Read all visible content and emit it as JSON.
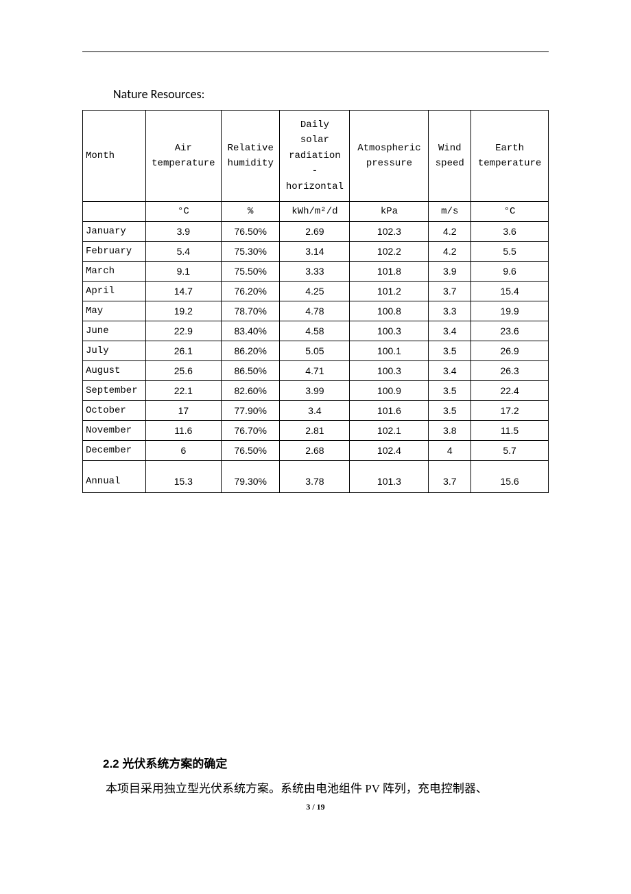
{
  "title": "Nature Resources:",
  "table": {
    "columns": [
      {
        "header": "Month",
        "unit": "",
        "width_class": "col-month"
      },
      {
        "header": "Air\ntemperature",
        "unit": "°C",
        "width_class": "col-air"
      },
      {
        "header": "Relative\nhumidity",
        "unit": "%",
        "width_class": "col-humidity"
      },
      {
        "header": "Daily\nsolar\nradiation\n-\nhorizontal",
        "unit": "kWh/m²/d",
        "width_class": "col-solar"
      },
      {
        "header": "Atmospheric\npressure",
        "unit": "kPa",
        "width_class": "col-pressure"
      },
      {
        "header": "Wind\nspeed",
        "unit": "m/s",
        "width_class": "col-wind"
      },
      {
        "header": "Earth\ntemperature",
        "unit": "°C",
        "width_class": "col-earth"
      }
    ],
    "rows": [
      {
        "month": "January",
        "values": [
          "3.9",
          "76.50%",
          "2.69",
          "102.3",
          "4.2",
          "3.6"
        ]
      },
      {
        "month": "February",
        "values": [
          "5.4",
          "75.30%",
          "3.14",
          "102.2",
          "4.2",
          "5.5"
        ]
      },
      {
        "month": "March",
        "values": [
          "9.1",
          "75.50%",
          "3.33",
          "101.8",
          "3.9",
          "9.6"
        ]
      },
      {
        "month": "April",
        "values": [
          "14.7",
          "76.20%",
          "4.25",
          "101.2",
          "3.7",
          "15.4"
        ]
      },
      {
        "month": "May",
        "values": [
          "19.2",
          "78.70%",
          "4.78",
          "100.8",
          "3.3",
          "19.9"
        ]
      },
      {
        "month": "June",
        "values": [
          "22.9",
          "83.40%",
          "4.58",
          "100.3",
          "3.4",
          "23.6"
        ]
      },
      {
        "month": "July",
        "values": [
          "26.1",
          "86.20%",
          "5.05",
          "100.1",
          "3.5",
          "26.9"
        ]
      },
      {
        "month": "August",
        "values": [
          "25.6",
          "86.50%",
          "4.71",
          "100.3",
          "3.4",
          "26.3"
        ]
      },
      {
        "month": "September",
        "values": [
          "22.1",
          "82.60%",
          "3.99",
          "100.9",
          "3.5",
          "22.4"
        ]
      },
      {
        "month": "October",
        "values": [
          "17",
          "77.90%",
          "3.4",
          "101.6",
          "3.5",
          "17.2"
        ]
      },
      {
        "month": "November",
        "values": [
          "11.6",
          "76.70%",
          "2.81",
          "102.1",
          "3.8",
          "11.5"
        ]
      },
      {
        "month": "December",
        "values": [
          "6",
          "76.50%",
          "2.68",
          "102.4",
          "4",
          "5.7"
        ]
      }
    ],
    "annual": {
      "month": "Annual",
      "values": [
        "15.3",
        "79.30%",
        "3.78",
        "101.3",
        "3.7",
        "15.6"
      ]
    },
    "border_color": "#000000",
    "background_color": "#ffffff",
    "header_font": "SimSun",
    "data_font": "Arial",
    "font_size": 14
  },
  "section": {
    "heading": "2.2 光伏系统方案的确定",
    "body": "本项目采用独立型光伏系统方案。系统由电池组件 PV 阵列，充电控制器、"
  },
  "page_number": "3 / 19"
}
